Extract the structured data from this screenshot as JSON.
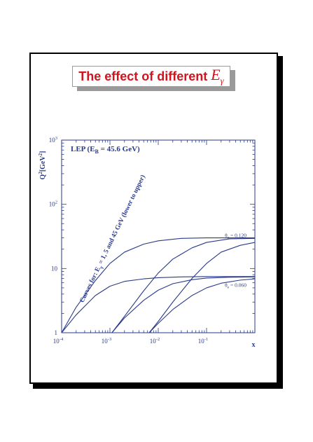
{
  "slide": {
    "title_text": "The effect of different",
    "title_symbol": "E",
    "title_symbol_sub": "γ"
  },
  "colors": {
    "title": "#d2141e",
    "ink": "#2a3a8c"
  },
  "chart_data": {
    "type": "line",
    "title": "LEP (E_B = 45.6 GeV)",
    "title_parts": {
      "main": "LEP (E",
      "sub": "B",
      "rest": " = 45.6 GeV)"
    },
    "xlabel": "x",
    "ylabel": "Q²[GeV²]",
    "ylabel_parts": {
      "q": "Q",
      "sup1": "2",
      "bracket": "[GeV",
      "sup2": "2",
      "close": "]"
    },
    "x_scale": "log",
    "y_scale": "log",
    "xlim": [
      0.0001,
      1
    ],
    "ylim": [
      1,
      1000
    ],
    "x_ticks": [
      {
        "value": 0.0001,
        "base": "10",
        "exp": "-4"
      },
      {
        "value": 0.001,
        "base": "10",
        "exp": "-3"
      },
      {
        "value": 0.01,
        "base": "10",
        "exp": "-2"
      },
      {
        "value": 0.1,
        "base": "10",
        "exp": "-1"
      }
    ],
    "y_ticks": [
      {
        "value": 1,
        "base": "1",
        "exp": ""
      },
      {
        "value": 10,
        "base": "10",
        "exp": ""
      },
      {
        "value": 100,
        "base": "10",
        "exp": "2"
      },
      {
        "value": 1000,
        "base": "10",
        "exp": "3"
      }
    ],
    "grid": false,
    "annotation": {
      "prefix": "Curves for: E",
      "sub": "γ",
      "suffix": " = 1, 5 and 45 GeV (lower to upper)"
    },
    "curve_labels": [
      {
        "theta_sub": "e",
        "text": "θ",
        "value": " = 0.120",
        "x": 0.4,
        "y": 31
      },
      {
        "theta_sub": "e",
        "text": "θ",
        "value": " = 0.060",
        "x": 0.4,
        "y": 5.2
      }
    ],
    "series": [
      {
        "x": [
          0.0001,
          0.0002,
          0.0005,
          0.001,
          0.002,
          0.005,
          0.01,
          0.03,
          0.1,
          0.3,
          1
        ],
        "y": [
          1,
          2.5,
          6.5,
          12,
          18,
          24,
          27,
          29.5,
          30,
          30,
          30
        ]
      },
      {
        "x": [
          0.0011,
          0.002,
          0.005,
          0.01,
          0.02,
          0.05,
          0.1,
          0.3,
          1
        ],
        "y": [
          1,
          1.8,
          4.5,
          8.5,
          14,
          21,
          25.5,
          29,
          29.5
        ]
      },
      {
        "x": [
          0.0065,
          0.01,
          0.02,
          0.05,
          0.1,
          0.2,
          0.5,
          1
        ],
        "y": [
          1,
          1.5,
          3,
          7,
          12,
          18,
          23,
          25.5
        ]
      },
      {
        "x": [
          0.0001,
          0.0002,
          0.0005,
          0.001,
          0.002,
          0.005,
          0.01,
          0.03,
          0.1,
          0.3,
          1
        ],
        "y": [
          1,
          1.9,
          3.8,
          5.3,
          6.3,
          6.9,
          7.2,
          7.4,
          7.5,
          7.5,
          7.5
        ]
      },
      {
        "x": [
          0.0011,
          0.002,
          0.005,
          0.01,
          0.02,
          0.05,
          0.1,
          0.3,
          1
        ],
        "y": [
          1,
          1.7,
          3.2,
          4.6,
          5.8,
          6.7,
          7.1,
          7.3,
          7.4
        ]
      },
      {
        "x": [
          0.0065,
          0.01,
          0.02,
          0.05,
          0.1,
          0.2,
          0.5,
          1
        ],
        "y": [
          1,
          1.4,
          2.3,
          3.8,
          5,
          5.9,
          6.6,
          6.9
        ]
      }
    ]
  }
}
